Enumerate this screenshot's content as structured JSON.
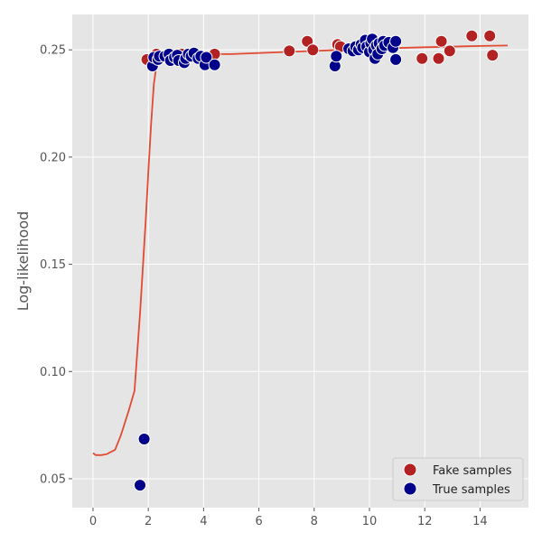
{
  "chart_data": {
    "type": "scatter",
    "title": "",
    "xlabel": "",
    "ylabel": "Log-likelihood",
    "xlim": [
      -0.75,
      15.75
    ],
    "ylim": [
      0.0365,
      0.2665
    ],
    "x_ticks": [
      0,
      2,
      4,
      6,
      8,
      10,
      12,
      14
    ],
    "y_ticks": [
      0.05,
      0.1,
      0.15,
      0.2,
      0.25
    ],
    "x_tick_labels": [
      "0",
      "2",
      "4",
      "6",
      "8",
      "10",
      "12",
      "14"
    ],
    "y_tick_labels": [
      "0.05",
      "0.10",
      "0.15",
      "0.20",
      "0.25"
    ],
    "grid": true,
    "legend_position": "bottom-right",
    "colors": {
      "background": "#e5e5e5",
      "grid": "#ffffff",
      "curve": "#e24a33",
      "fake": "#b22222",
      "true": "#00008b"
    },
    "curve": {
      "x": [
        0.0,
        0.1,
        0.3,
        0.5,
        0.8,
        1.0,
        1.3,
        1.5,
        1.7,
        1.9,
        2.0,
        2.1,
        2.2,
        2.3,
        2.4,
        2.5,
        2.7,
        3.0,
        3.5,
        4.0,
        5.0,
        7.0,
        9.0,
        10.0,
        12.0,
        14.0,
        15.0
      ],
      "y": [
        0.062,
        0.061,
        0.061,
        0.0615,
        0.0635,
        0.07,
        0.082,
        0.091,
        0.127,
        0.169,
        0.193,
        0.215,
        0.234,
        0.243,
        0.246,
        0.247,
        0.2475,
        0.2475,
        0.2478,
        0.248,
        0.248,
        0.249,
        0.25,
        0.2505,
        0.2512,
        0.2518,
        0.252
      ]
    },
    "series": [
      {
        "name": "Fake samples",
        "color": "#b22222",
        "points": [
          [
            1.95,
            0.2455
          ],
          [
            2.3,
            0.248
          ],
          [
            2.6,
            0.247
          ],
          [
            3.2,
            0.248
          ],
          [
            3.6,
            0.2475
          ],
          [
            4.4,
            0.248
          ],
          [
            7.1,
            0.2495
          ],
          [
            7.75,
            0.254
          ],
          [
            7.95,
            0.25
          ],
          [
            8.85,
            0.2525
          ],
          [
            8.95,
            0.2515
          ],
          [
            9.7,
            0.251
          ],
          [
            10.2,
            0.2525
          ],
          [
            10.8,
            0.252
          ],
          [
            11.9,
            0.246
          ],
          [
            12.5,
            0.246
          ],
          [
            12.6,
            0.254
          ],
          [
            12.9,
            0.2495
          ],
          [
            13.7,
            0.2565
          ],
          [
            14.35,
            0.2565
          ],
          [
            14.45,
            0.2475
          ]
        ]
      },
      {
        "name": "True samples",
        "color": "#00008b",
        "points": [
          [
            1.7,
            0.047
          ],
          [
            1.85,
            0.0685
          ],
          [
            2.15,
            0.2425
          ],
          [
            2.2,
            0.2465
          ],
          [
            2.35,
            0.2455
          ],
          [
            2.4,
            0.247
          ],
          [
            2.6,
            0.247
          ],
          [
            2.75,
            0.248
          ],
          [
            2.8,
            0.245
          ],
          [
            2.95,
            0.2465
          ],
          [
            3.05,
            0.2475
          ],
          [
            3.1,
            0.245
          ],
          [
            3.3,
            0.244
          ],
          [
            3.35,
            0.246
          ],
          [
            3.45,
            0.248
          ],
          [
            3.55,
            0.247
          ],
          [
            3.65,
            0.2485
          ],
          [
            3.8,
            0.246
          ],
          [
            3.9,
            0.247
          ],
          [
            4.05,
            0.243
          ],
          [
            4.1,
            0.2465
          ],
          [
            4.4,
            0.243
          ],
          [
            8.75,
            0.2425
          ],
          [
            8.8,
            0.247
          ],
          [
            9.25,
            0.2505
          ],
          [
            9.4,
            0.2495
          ],
          [
            9.5,
            0.2515
          ],
          [
            9.6,
            0.25
          ],
          [
            9.7,
            0.2525
          ],
          [
            9.75,
            0.251
          ],
          [
            9.85,
            0.2545
          ],
          [
            9.9,
            0.2515
          ],
          [
            10.0,
            0.249
          ],
          [
            10.05,
            0.253
          ],
          [
            10.1,
            0.255
          ],
          [
            10.15,
            0.25
          ],
          [
            10.2,
            0.246
          ],
          [
            10.25,
            0.252
          ],
          [
            10.3,
            0.248
          ],
          [
            10.35,
            0.253
          ],
          [
            10.45,
            0.2505
          ],
          [
            10.5,
            0.254
          ],
          [
            10.55,
            0.252
          ],
          [
            10.7,
            0.2535
          ],
          [
            10.85,
            0.251
          ],
          [
            10.95,
            0.2455
          ],
          [
            10.95,
            0.254
          ]
        ]
      }
    ]
  }
}
